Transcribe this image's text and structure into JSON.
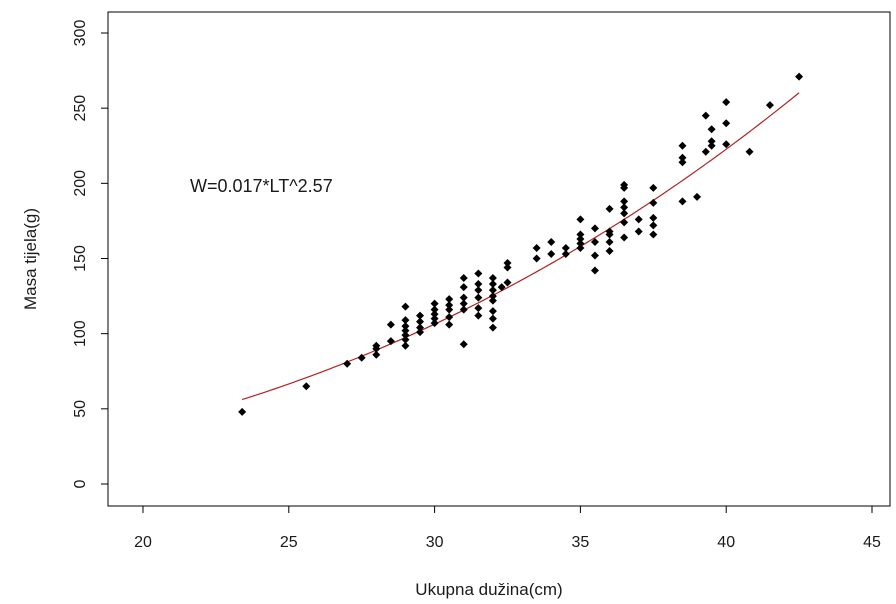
{
  "chart_data": {
    "type": "scatter",
    "xlabel": "Ukupna dužina(cm)",
    "ylabel": "Masa tijela(g)",
    "xlim": [
      20,
      45
    ],
    "ylim": [
      0,
      300
    ],
    "x_ticks": [
      "20",
      "25",
      "30",
      "35",
      "40",
      "45"
    ],
    "y_ticks": [
      "0",
      "50",
      "100",
      "150",
      "200",
      "250",
      "300"
    ],
    "annotation": "W=0.017*LT^2.57",
    "fit": {
      "a": 0.017,
      "b": 2.57,
      "x_from": 23.4,
      "x_to": 42.5,
      "color": "#b22222"
    },
    "point_color": "#000000",
    "points": [
      [
        23.4,
        48
      ],
      [
        25.6,
        65
      ],
      [
        27.0,
        80
      ],
      [
        27.5,
        84
      ],
      [
        28.0,
        86
      ],
      [
        28.0,
        90
      ],
      [
        28.0,
        92
      ],
      [
        28.5,
        95
      ],
      [
        28.5,
        106
      ],
      [
        29.0,
        92
      ],
      [
        29.0,
        96
      ],
      [
        29.0,
        99
      ],
      [
        29.0,
        102
      ],
      [
        29.0,
        105
      ],
      [
        29.0,
        109
      ],
      [
        29.0,
        118
      ],
      [
        29.5,
        101
      ],
      [
        29.5,
        104
      ],
      [
        29.5,
        108
      ],
      [
        29.5,
        112
      ],
      [
        30.0,
        107
      ],
      [
        30.0,
        110
      ],
      [
        30.0,
        113
      ],
      [
        30.0,
        116
      ],
      [
        30.0,
        120
      ],
      [
        30.5,
        106
      ],
      [
        30.5,
        111
      ],
      [
        30.5,
        116
      ],
      [
        30.5,
        119
      ],
      [
        30.5,
        123
      ],
      [
        31.0,
        93
      ],
      [
        31.0,
        116
      ],
      [
        31.0,
        120
      ],
      [
        31.0,
        124
      ],
      [
        31.0,
        131
      ],
      [
        31.0,
        137
      ],
      [
        31.5,
        112
      ],
      [
        31.5,
        117
      ],
      [
        31.5,
        124
      ],
      [
        31.5,
        129
      ],
      [
        31.5,
        133
      ],
      [
        31.5,
        140
      ],
      [
        32.0,
        104
      ],
      [
        32.0,
        110
      ],
      [
        32.0,
        115
      ],
      [
        32.0,
        122
      ],
      [
        32.0,
        125
      ],
      [
        32.0,
        129
      ],
      [
        32.0,
        133
      ],
      [
        32.0,
        137
      ],
      [
        32.3,
        131
      ],
      [
        32.5,
        134
      ],
      [
        32.5,
        144
      ],
      [
        32.5,
        147
      ],
      [
        33.5,
        150
      ],
      [
        33.5,
        157
      ],
      [
        34.0,
        153
      ],
      [
        34.0,
        161
      ],
      [
        34.5,
        153
      ],
      [
        34.5,
        157
      ],
      [
        35.0,
        157
      ],
      [
        35.0,
        160
      ],
      [
        35.0,
        163
      ],
      [
        35.0,
        166
      ],
      [
        35.0,
        176
      ],
      [
        35.5,
        142
      ],
      [
        35.5,
        152
      ],
      [
        35.5,
        161
      ],
      [
        35.5,
        170
      ],
      [
        36.0,
        155
      ],
      [
        36.0,
        161
      ],
      [
        36.0,
        166
      ],
      [
        36.0,
        168
      ],
      [
        36.0,
        183
      ],
      [
        36.5,
        164
      ],
      [
        36.5,
        174
      ],
      [
        36.5,
        180
      ],
      [
        36.5,
        184
      ],
      [
        36.5,
        188
      ],
      [
        36.5,
        197
      ],
      [
        36.5,
        199
      ],
      [
        37.0,
        168
      ],
      [
        37.0,
        176
      ],
      [
        37.5,
        166
      ],
      [
        37.5,
        172
      ],
      [
        37.5,
        177
      ],
      [
        37.5,
        187
      ],
      [
        37.5,
        197
      ],
      [
        38.5,
        188
      ],
      [
        38.5,
        214
      ],
      [
        38.5,
        217
      ],
      [
        38.5,
        225
      ],
      [
        39.0,
        191
      ],
      [
        39.3,
        221
      ],
      [
        39.3,
        245
      ],
      [
        39.5,
        225
      ],
      [
        39.5,
        228
      ],
      [
        39.5,
        236
      ],
      [
        40.0,
        226
      ],
      [
        40.0,
        240
      ],
      [
        40.0,
        254
      ],
      [
        40.8,
        221
      ],
      [
        41.5,
        252
      ],
      [
        42.5,
        271
      ]
    ]
  }
}
